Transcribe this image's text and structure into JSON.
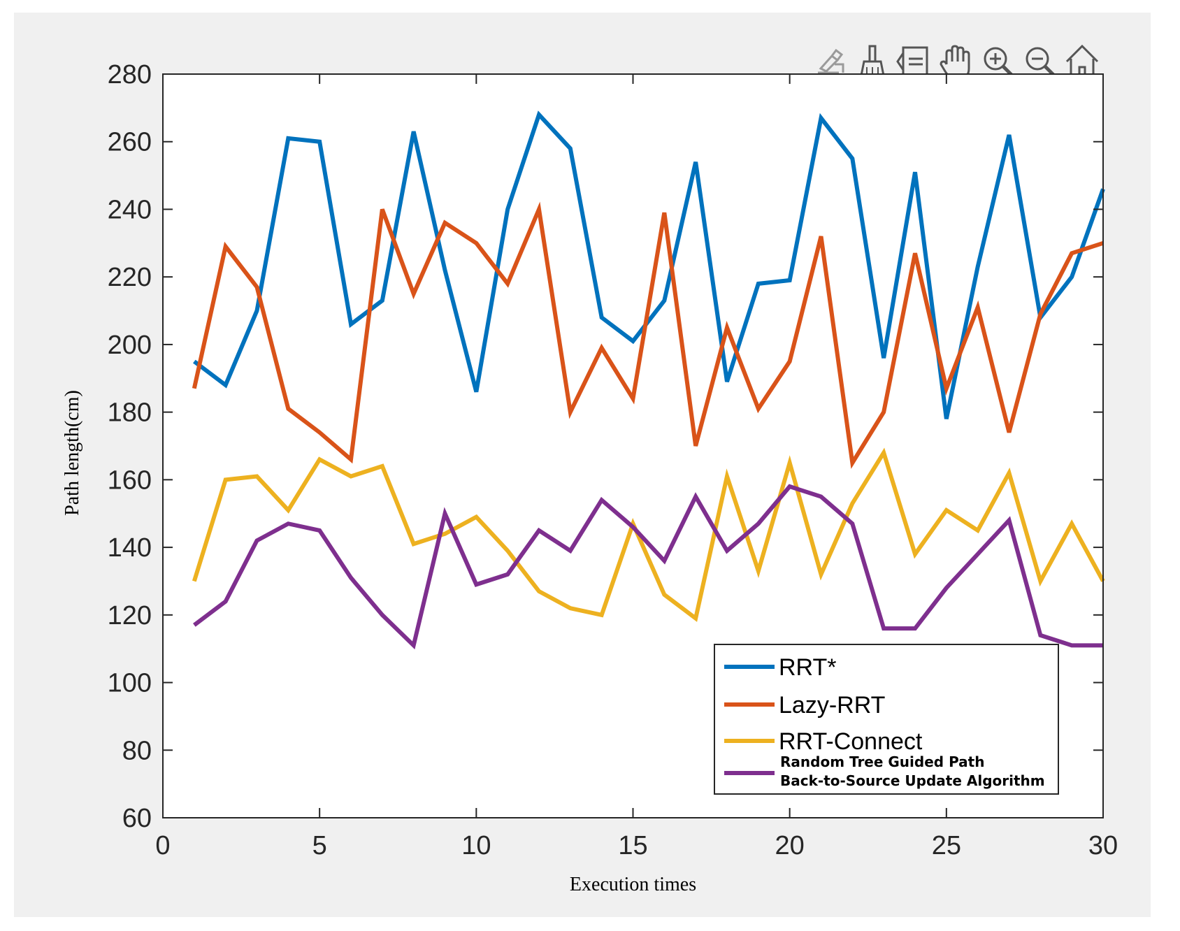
{
  "toolbar": {
    "icons": [
      "edit-plot-icon",
      "brush-icon",
      "legend-toggle-icon",
      "pan-hand-icon",
      "zoom-in-icon",
      "zoom-out-icon",
      "home-icon"
    ]
  },
  "chart_data": {
    "type": "line",
    "xlabel": "Execution times",
    "ylabel": "Path length(cm)",
    "xlim": [
      0,
      30
    ],
    "ylim": [
      60,
      280
    ],
    "xticks": [
      0,
      5,
      10,
      15,
      20,
      25,
      30
    ],
    "yticks": [
      60,
      80,
      100,
      120,
      140,
      160,
      180,
      200,
      220,
      240,
      260,
      280
    ],
    "grid": false,
    "legend_position": "bottom-right",
    "x": [
      1,
      2,
      3,
      4,
      5,
      6,
      7,
      8,
      9,
      10,
      11,
      12,
      13,
      14,
      15,
      16,
      17,
      18,
      19,
      20,
      21,
      22,
      23,
      24,
      25,
      26,
      27,
      28,
      29,
      30
    ],
    "series": [
      {
        "name": "RRT*",
        "color": "#0072bd",
        "values": [
          195,
          188,
          210,
          261,
          260,
          206,
          213,
          263,
          222,
          186,
          240,
          268,
          258,
          208,
          201,
          213,
          254,
          189,
          218,
          219,
          267,
          255,
          196,
          251,
          178,
          223,
          262,
          208,
          220,
          246
        ]
      },
      {
        "name": "Lazy-RRT",
        "color": "#d95319",
        "values": [
          187,
          229,
          217,
          181,
          174,
          166,
          240,
          215,
          236,
          230,
          218,
          240,
          180,
          199,
          184,
          239,
          170,
          205,
          181,
          195,
          232,
          165,
          180,
          227,
          187,
          211,
          174,
          209,
          227,
          230
        ]
      },
      {
        "name": "RRT-Connect",
        "color": "#edb120",
        "values": [
          130,
          160,
          161,
          151,
          166,
          161,
          164,
          141,
          144,
          149,
          139,
          127,
          122,
          120,
          147,
          126,
          119,
          161,
          133,
          165,
          132,
          153,
          168,
          138,
          151,
          145,
          162,
          130,
          147,
          130
        ]
      },
      {
        "name": "Random Tree Guided Path Back-to-Source Update Algorithm",
        "name_lines": [
          "Random Tree Guided Path",
          "Back-to-Source Update Algorithm"
        ],
        "color": "#7e2f8e",
        "values": [
          117,
          124,
          142,
          147,
          145,
          131,
          120,
          111,
          150,
          129,
          132,
          145,
          139,
          154,
          146,
          136,
          155,
          139,
          147,
          158,
          155,
          147,
          116,
          116,
          128,
          138,
          148,
          114,
          111,
          111
        ]
      }
    ]
  }
}
